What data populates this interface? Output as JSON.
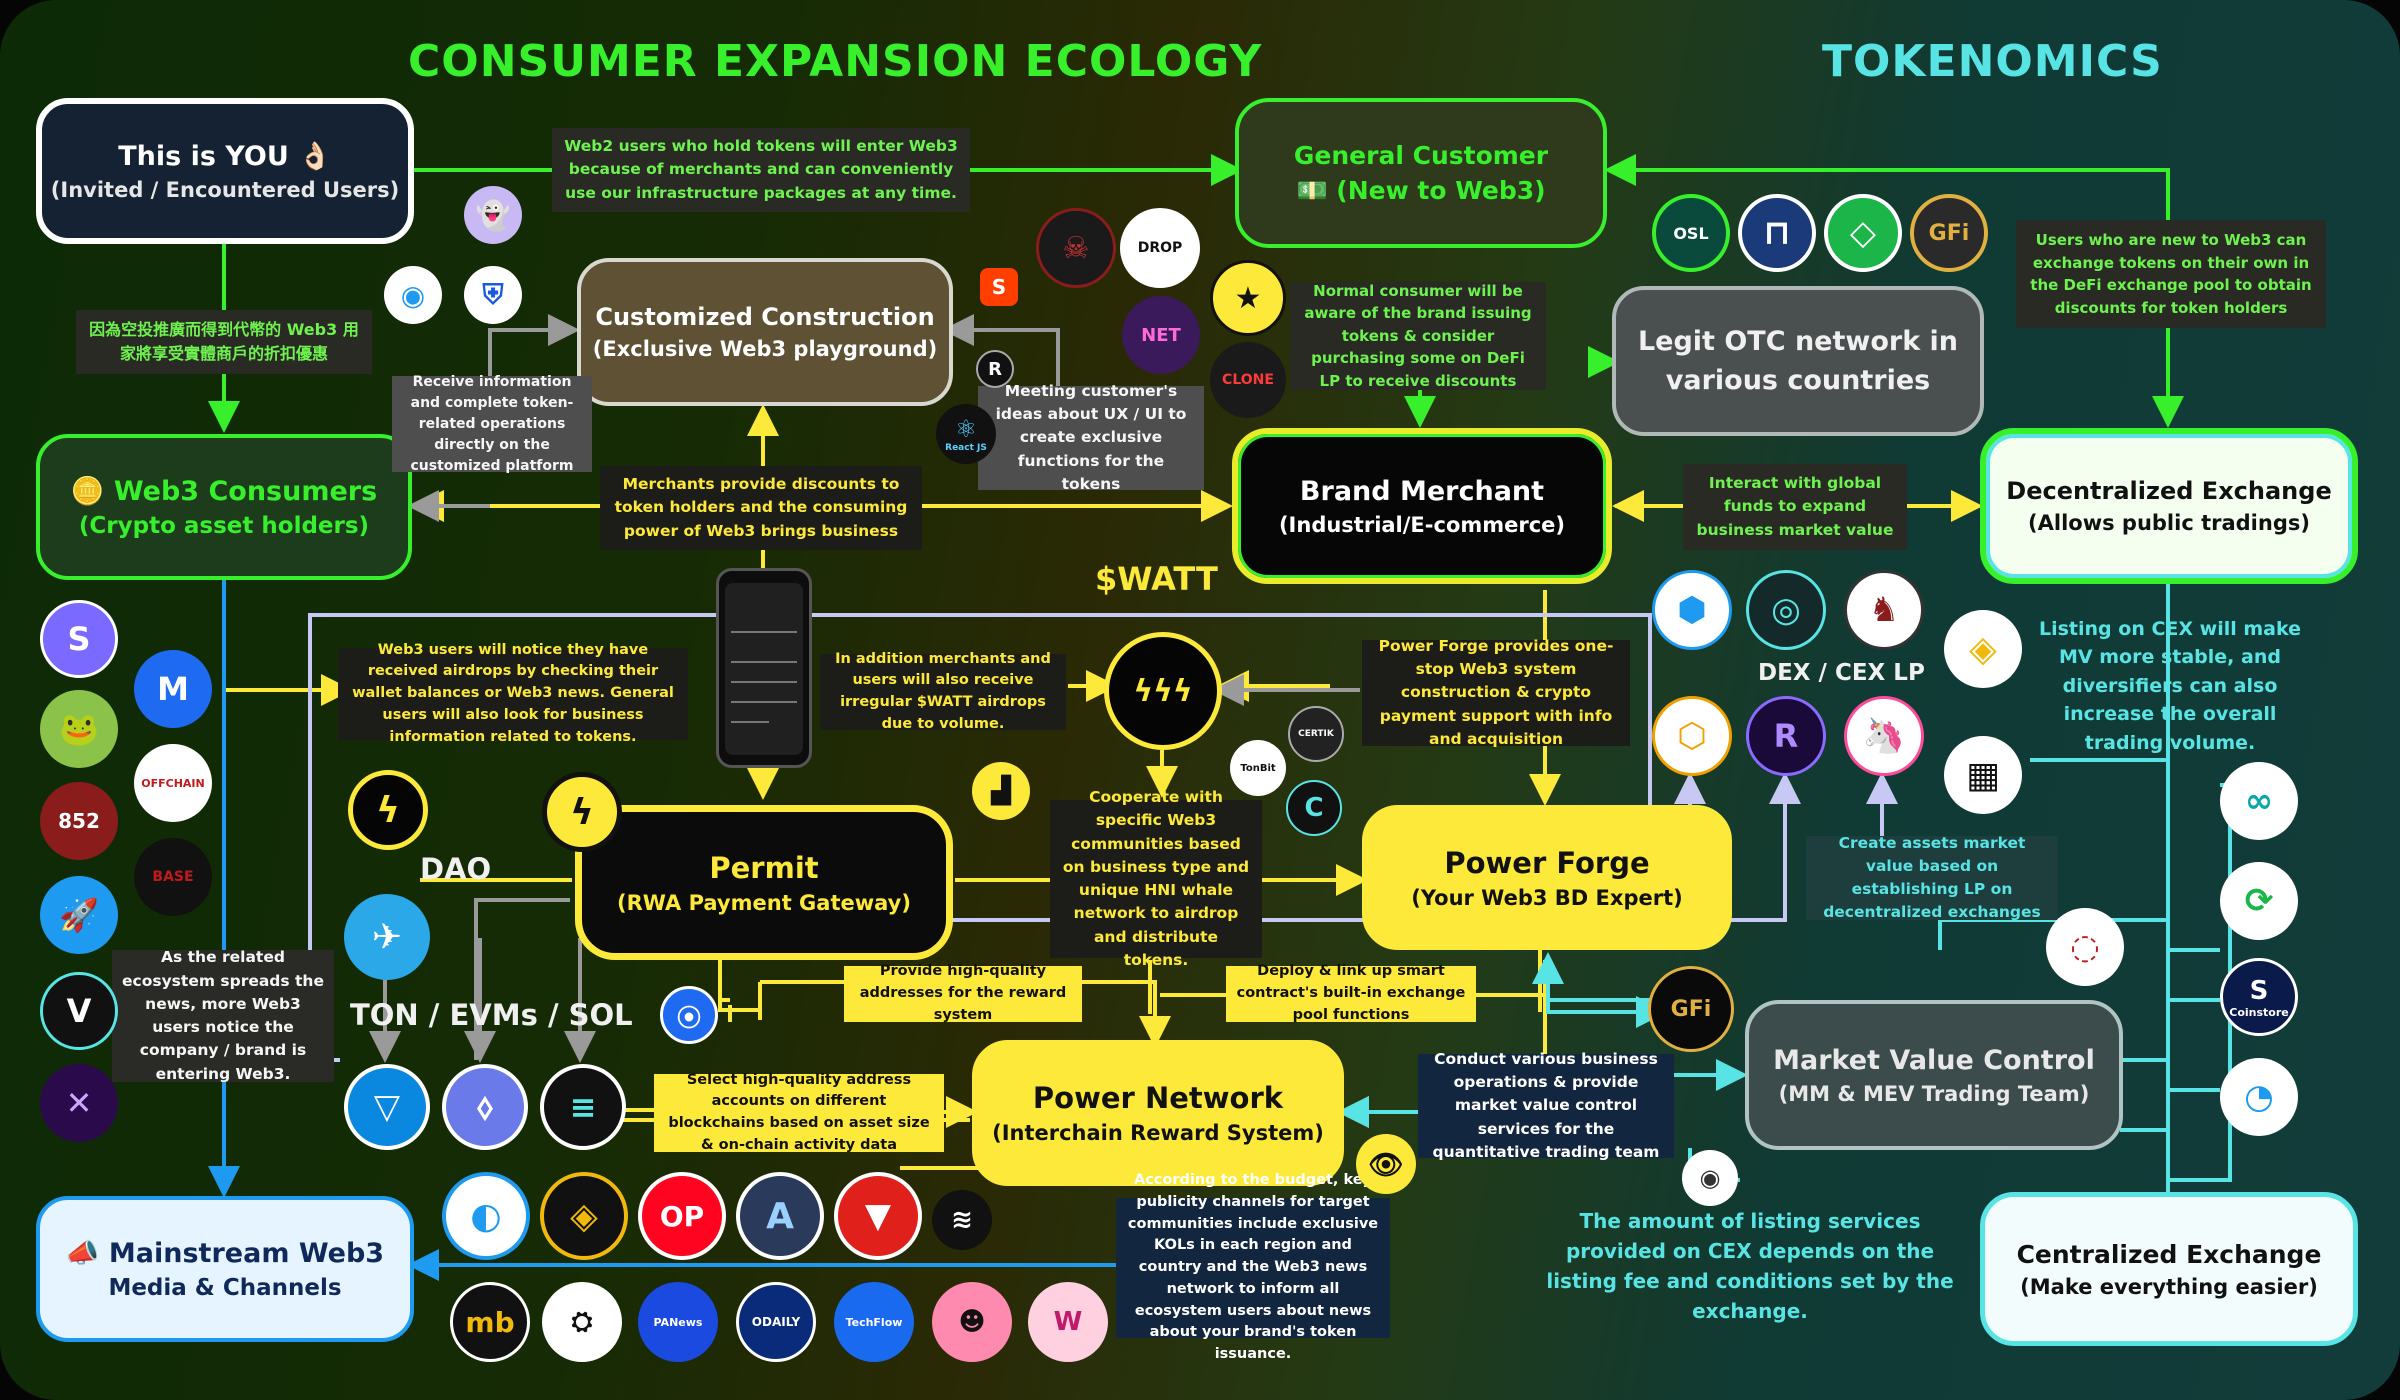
{
  "titles": {
    "left": "CONSUMER EXPANSION ECOLOGY",
    "right": "TOKENOMICS",
    "watt": "$WATT",
    "dex_cex": "DEX / CEX LP",
    "dao": "DAO",
    "chains": "TON / EVMs / SOL"
  },
  "nodes": {
    "you": {
      "title": "This is YOU 👌🏻",
      "sub": "(Invited / Encountered Users)"
    },
    "web3_consumers": {
      "title": "🪙 Web3 Consumers",
      "sub": "(Crypto asset holders)"
    },
    "media": {
      "title": "📣 Mainstream Web3",
      "sub": "Media & Channels"
    },
    "custom": {
      "title": "Customized Construction",
      "sub": "(Exclusive Web3 playground)"
    },
    "general": {
      "title": "General Customer",
      "sub": "💵 (New to Web3)"
    },
    "merchant": {
      "title": "Brand Merchant",
      "sub": "(Industrial/E-commerce)"
    },
    "otc": {
      "title": "Legit OTC network in",
      "sub": "various countries"
    },
    "dex": {
      "title": "Decentralized Exchange",
      "sub": "(Allows public tradings)"
    },
    "permit": {
      "title": "Permit",
      "sub": "(RWA Payment Gateway)"
    },
    "forge": {
      "title": "Power Forge",
      "sub": "(Your Web3 BD Expert)"
    },
    "network": {
      "title": "Power Network",
      "sub": "(Interchain Reward System)"
    },
    "mvc": {
      "title": "Market Value Control",
      "sub": "(MM & MEV Trading Team)"
    },
    "cex": {
      "title": "Centralized Exchange",
      "sub": "(Make everything easier)"
    }
  },
  "notes": {
    "n1": "Web2 users who hold tokens will enter Web3 because of merchants and can conveniently use our infrastructure packages at any time.",
    "n2": "因為空投推廣而得到代幣的 Web3 用家將享受實體商戶的折扣優惠",
    "n3": "Receive information and complete token-related operations directly on the customized platform",
    "n4": "Merchants provide discounts to token holders and the consuming power of Web3 brings business",
    "n5": "Meeting customer's ideas about UX / UI to create exclusive functions for the tokens",
    "n6": "Normal consumer will be aware of the brand issuing tokens & consider purchasing some on DeFi LP to receive discounts",
    "n7": "Users who are new to Web3 can exchange tokens on their own in the DeFi exchange pool to obtain discounts for token holders",
    "n8": "Interact with global funds to expand business market value",
    "n9": "Web3 users will notice they have received airdrops by checking their wallet balances or Web3 news. General users will also look for business information related to tokens.",
    "n10": "In addition merchants and users will also receive irregular $WATT airdrops due to volume.",
    "n11": "Power Forge provides one-stop Web3 system construction & crypto payment support with info and acquisition",
    "n12": "Listing on CEX will make MV more stable, and diversifiers can also increase the overall trading volume.",
    "n13": "Cooperate with specific Web3 communities based on business type and unique HNI whale network to airdrop and distribute tokens.",
    "n14": "Create assets market value based on establishing LP on decentralized exchanges",
    "n15": "As the related ecosystem spreads the news, more Web3 users notice the company / brand is entering Web3.",
    "n16": "Provide high-quality addresses for the reward system",
    "n17": "Deploy & link up smart contract's built-in exchange pool functions",
    "n18": "Select high-quality address accounts on different blockchains based on asset size & on-chain activity data",
    "n19": "Conduct various business operations & provide market value control services for the quantitative trading team",
    "n20": "According to the budget, key publicity channels for target communities include exclusive KOLs in each region and country and the Web3 news network to inform all ecosystem users about news about your brand's token issuance.",
    "n21": "The amount of listing services provided on CEX depends on the listing fee and conditions set by the exchange."
  },
  "logos": {
    "osl": "OSL",
    "gfi": "GFi",
    "gfi_big": "GFi",
    "drop": "DROP",
    "net": "NET",
    "clone": "CLONE",
    "react": "React JS",
    "certik": "CERTIK",
    "tonbit": "TonBit",
    "offchain": "OFFCHAIN",
    "w852": "852",
    "base": "BASE",
    "op": "OP",
    "odaily": "ODAILY",
    "techflow": "TechFlow",
    "panews": "PANews",
    "coinstore": "Coinstore",
    "mb": "mb"
  },
  "colors": {
    "green": "#37f02b",
    "yellow": "#fde93a",
    "gray": "#9a9a9a",
    "cyan": "#58e4e4",
    "lav": "#c8c8f4",
    "blue": "#1e9af0"
  }
}
